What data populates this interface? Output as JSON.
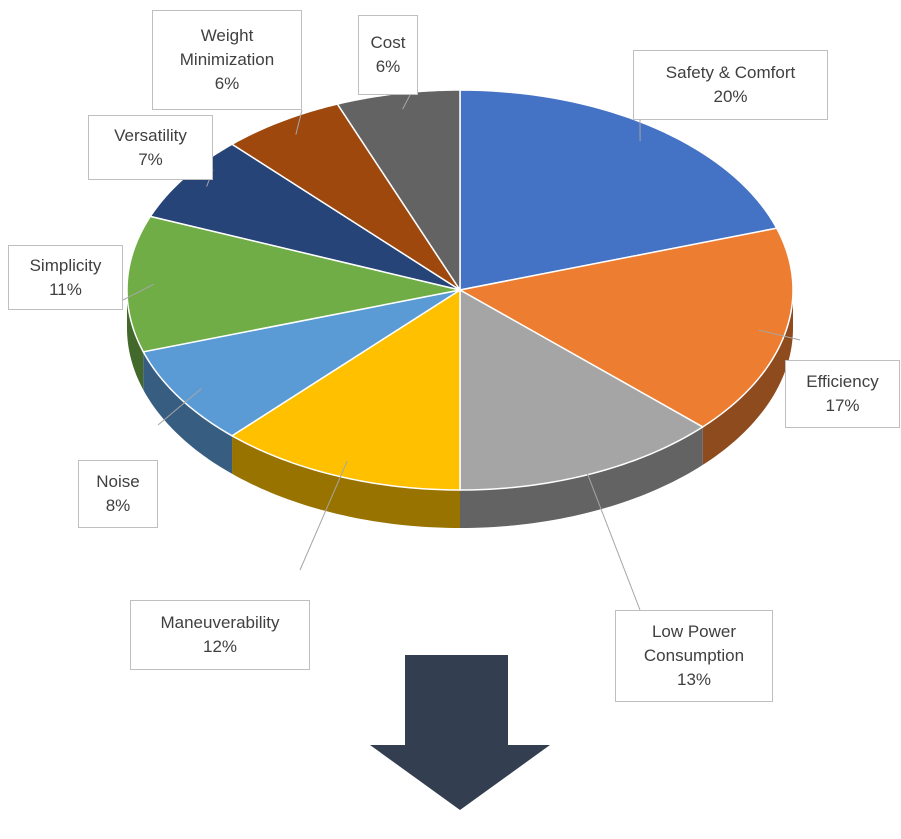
{
  "chart_data": {
    "type": "pie3d",
    "categories": [
      "Safety & Comfort",
      "Efficiency",
      "Low Power Consumption",
      "Maneuverability",
      "Noise",
      "Simplicity",
      "Versatility",
      "Weight Minimization",
      "Cost"
    ],
    "values": [
      20,
      17,
      13,
      12,
      8,
      11,
      7,
      6,
      6
    ],
    "value_labels": [
      "20%",
      "17%",
      "13%",
      "12%",
      "8%",
      "11%",
      "7%",
      "6%",
      "6%"
    ],
    "colors": [
      "#4472c4",
      "#ed7d31",
      "#a5a5a5",
      "#ffc000",
      "#5b9bd5",
      "#70ad47",
      "#264478",
      "#9e480e",
      "#636363"
    ]
  }
}
